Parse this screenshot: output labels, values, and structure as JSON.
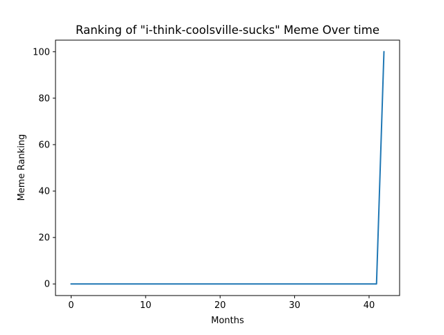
{
  "chart_data": {
    "type": "line",
    "title": "Ranking of \"i-think-coolsville-sucks\" Meme Over time",
    "xlabel": "Months",
    "ylabel": "Meme Ranking",
    "xlim": [
      -2.1,
      44.1
    ],
    "ylim": [
      -5,
      105
    ],
    "xticks": [
      0,
      10,
      20,
      30,
      40
    ],
    "yticks": [
      0,
      20,
      40,
      60,
      80,
      100
    ],
    "grid": false,
    "series": [
      {
        "color": "#1f77b4",
        "x": [
          0,
          1,
          2,
          3,
          4,
          5,
          6,
          7,
          8,
          9,
          10,
          11,
          12,
          13,
          14,
          15,
          16,
          17,
          18,
          19,
          20,
          21,
          22,
          23,
          24,
          25,
          26,
          27,
          28,
          29,
          30,
          31,
          32,
          33,
          34,
          35,
          36,
          37,
          38,
          39,
          40,
          41,
          42
        ],
        "y": [
          0,
          0,
          0,
          0,
          0,
          0,
          0,
          0,
          0,
          0,
          0,
          0,
          0,
          0,
          0,
          0,
          0,
          0,
          0,
          0,
          0,
          0,
          0,
          0,
          0,
          0,
          0,
          0,
          0,
          0,
          0,
          0,
          0,
          0,
          0,
          0,
          0,
          0,
          0,
          0,
          0,
          0,
          100
        ]
      }
    ]
  }
}
